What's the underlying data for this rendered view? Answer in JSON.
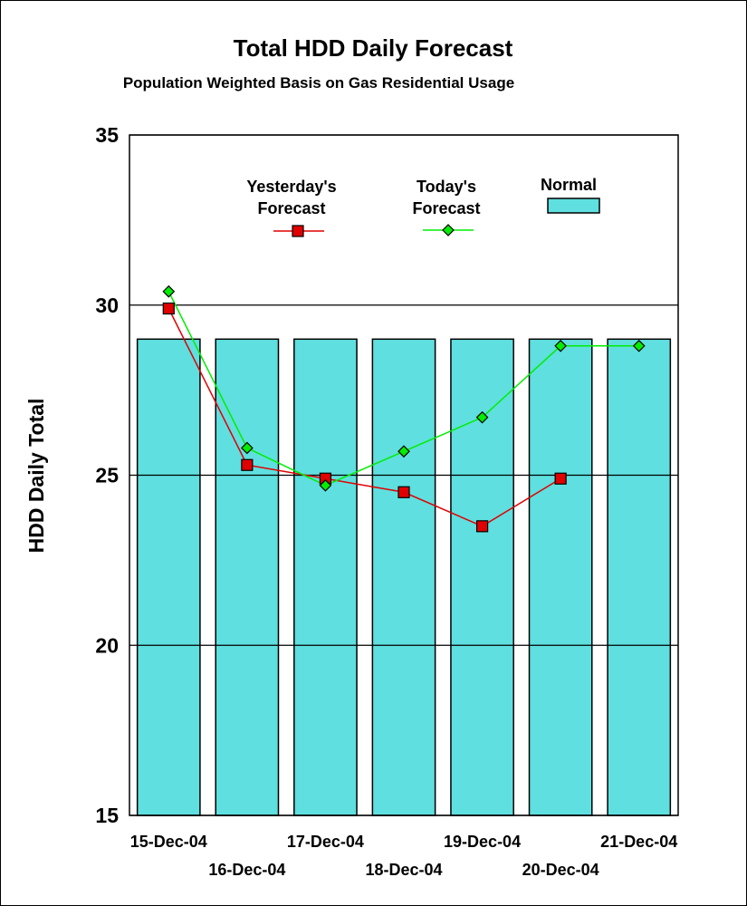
{
  "chart_data": {
    "type": "bar",
    "title": "Total HDD Daily Forecast",
    "subtitle": "Population Weighted Basis on Gas Residential Usage",
    "ylabel": "HDD Daily Total",
    "xlabel": "",
    "ylim": [
      15,
      35
    ],
    "yticks": [
      "15",
      "20",
      "25",
      "30",
      "35"
    ],
    "grid": "horizontal",
    "legend_position": "top",
    "categories": [
      "15-Dec-04",
      "16-Dec-04",
      "17-Dec-04",
      "18-Dec-04",
      "19-Dec-04",
      "20-Dec-04",
      "21-Dec-04"
    ],
    "series": [
      {
        "name": "Normal",
        "type": "bar",
        "color": "#5fdfdf",
        "values": [
          29,
          29,
          29,
          29,
          29,
          29,
          29
        ]
      },
      {
        "name": "Yesterday's Forecast",
        "type": "line",
        "marker": "square",
        "color": "#e00000",
        "values": [
          29.9,
          25.3,
          24.9,
          24.5,
          23.5,
          24.9,
          null
        ]
      },
      {
        "name": "Today's Forecast",
        "type": "line",
        "marker": "diamond",
        "color": "#00ee00",
        "values": [
          30.4,
          25.8,
          24.7,
          25.7,
          26.7,
          28.8,
          28.8
        ]
      }
    ],
    "legend_labels": {
      "yesterday_line1": "Yesterday's",
      "yesterday_line2": "Forecast",
      "today_line1": "Today's",
      "today_line2": "Forecast",
      "normal": "Normal"
    }
  }
}
